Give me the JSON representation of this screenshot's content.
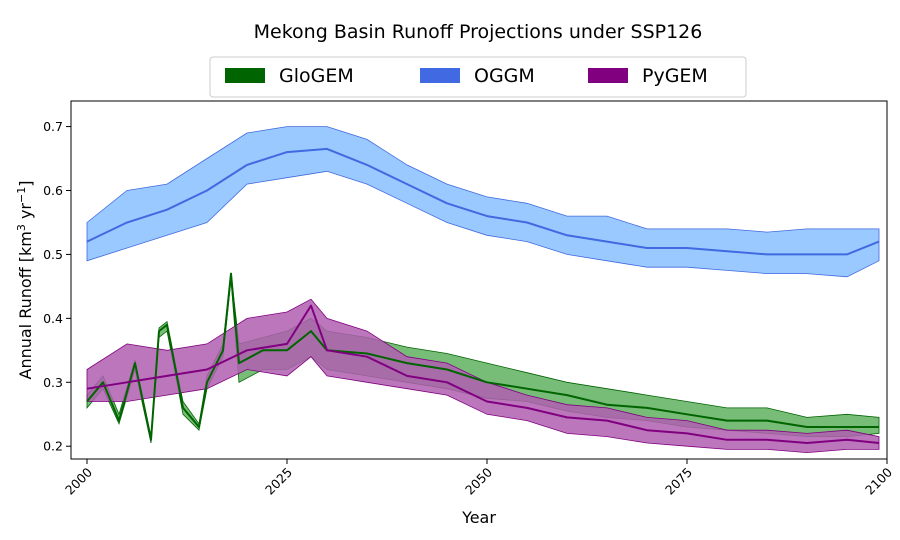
{
  "chart_data": {
    "type": "line",
    "title": "Mekong Basin Runoff Projections under SSP126",
    "xlabel": "Year",
    "ylabel_parts": {
      "base": "Annual Runoff [km",
      "sup1": "3",
      "mid": " yr",
      "sup2": "−1",
      "end": "]"
    },
    "xlim": [
      1998,
      2100
    ],
    "ylim": [
      0.18,
      0.74
    ],
    "xticks": [
      2000,
      2025,
      2050,
      2075,
      2100
    ],
    "xtick_labels": [
      "2000",
      "2025",
      "2050",
      "2075",
      "2100"
    ],
    "yticks": [
      0.2,
      0.3,
      0.4,
      0.5,
      0.6,
      0.7
    ],
    "ytick_labels": [
      "0.2",
      "0.3",
      "0.4",
      "0.5",
      "0.6",
      "0.7"
    ],
    "legend": {
      "position": "top-center",
      "entries": [
        "GloGEM",
        "OGGM",
        "PyGEM"
      ]
    },
    "series": [
      {
        "name": "OGGM",
        "line_color": "#4169E1",
        "fill_color": "#87BFFF",
        "x": [
          2000,
          2005,
          2010,
          2015,
          2020,
          2025,
          2030,
          2035,
          2040,
          2045,
          2050,
          2055,
          2060,
          2065,
          2070,
          2075,
          2080,
          2085,
          2090,
          2095,
          2099
        ],
        "mean": [
          0.52,
          0.55,
          0.57,
          0.6,
          0.64,
          0.66,
          0.665,
          0.64,
          0.61,
          0.58,
          0.56,
          0.55,
          0.53,
          0.52,
          0.51,
          0.51,
          0.505,
          0.5,
          0.5,
          0.5,
          0.52
        ],
        "lower": [
          0.49,
          0.51,
          0.53,
          0.55,
          0.61,
          0.62,
          0.63,
          0.61,
          0.58,
          0.55,
          0.53,
          0.52,
          0.5,
          0.49,
          0.48,
          0.48,
          0.475,
          0.47,
          0.47,
          0.465,
          0.49
        ],
        "upper": [
          0.55,
          0.6,
          0.61,
          0.65,
          0.69,
          0.7,
          0.7,
          0.68,
          0.64,
          0.61,
          0.59,
          0.58,
          0.56,
          0.56,
          0.54,
          0.54,
          0.54,
          0.535,
          0.54,
          0.54,
          0.54
        ]
      },
      {
        "name": "GloGEM",
        "line_color": "#006400",
        "fill_color": "#5FB05F",
        "x": [
          2000,
          2002,
          2004,
          2006,
          2008,
          2009,
          2010,
          2012,
          2014,
          2015,
          2017,
          2018,
          2019,
          2022,
          2025,
          2028,
          2030,
          2035,
          2040,
          2045,
          2050,
          2055,
          2060,
          2065,
          2070,
          2075,
          2080,
          2085,
          2090,
          2095,
          2099
        ],
        "mean": [
          0.27,
          0.3,
          0.24,
          0.33,
          0.21,
          0.38,
          0.39,
          0.26,
          0.23,
          0.3,
          0.35,
          0.47,
          0.33,
          0.35,
          0.35,
          0.38,
          0.35,
          0.345,
          0.33,
          0.32,
          0.3,
          0.29,
          0.28,
          0.265,
          0.26,
          0.25,
          0.24,
          0.24,
          0.23,
          0.23,
          0.23
        ],
        "lower": [
          0.26,
          0.29,
          0.235,
          0.32,
          0.205,
          0.37,
          0.38,
          0.25,
          0.225,
          0.29,
          0.34,
          0.46,
          0.3,
          0.32,
          0.32,
          0.34,
          0.32,
          0.31,
          0.3,
          0.29,
          0.275,
          0.27,
          0.255,
          0.245,
          0.24,
          0.23,
          0.225,
          0.22,
          0.215,
          0.215,
          0.22
        ],
        "upper": [
          0.28,
          0.31,
          0.25,
          0.335,
          0.215,
          0.385,
          0.395,
          0.27,
          0.235,
          0.31,
          0.36,
          0.47,
          0.36,
          0.37,
          0.38,
          0.4,
          0.38,
          0.37,
          0.355,
          0.345,
          0.33,
          0.315,
          0.3,
          0.29,
          0.28,
          0.27,
          0.26,
          0.26,
          0.245,
          0.25,
          0.245
        ]
      },
      {
        "name": "PyGEM",
        "line_color": "#800080",
        "fill_color": "#B05FB0",
        "x": [
          2000,
          2005,
          2010,
          2015,
          2020,
          2025,
          2028,
          2030,
          2035,
          2040,
          2045,
          2050,
          2055,
          2060,
          2065,
          2070,
          2075,
          2080,
          2085,
          2090,
          2095,
          2099
        ],
        "mean": [
          0.29,
          0.3,
          0.31,
          0.32,
          0.35,
          0.36,
          0.42,
          0.35,
          0.34,
          0.31,
          0.3,
          0.27,
          0.26,
          0.245,
          0.24,
          0.225,
          0.22,
          0.21,
          0.21,
          0.205,
          0.21,
          0.205
        ],
        "lower": [
          0.27,
          0.27,
          0.28,
          0.29,
          0.32,
          0.31,
          0.34,
          0.31,
          0.3,
          0.29,
          0.28,
          0.25,
          0.24,
          0.22,
          0.215,
          0.205,
          0.2,
          0.195,
          0.195,
          0.19,
          0.195,
          0.195
        ],
        "upper": [
          0.32,
          0.36,
          0.35,
          0.36,
          0.4,
          0.41,
          0.43,
          0.4,
          0.38,
          0.34,
          0.33,
          0.3,
          0.28,
          0.265,
          0.26,
          0.245,
          0.24,
          0.225,
          0.225,
          0.22,
          0.225,
          0.215
        ]
      }
    ]
  }
}
